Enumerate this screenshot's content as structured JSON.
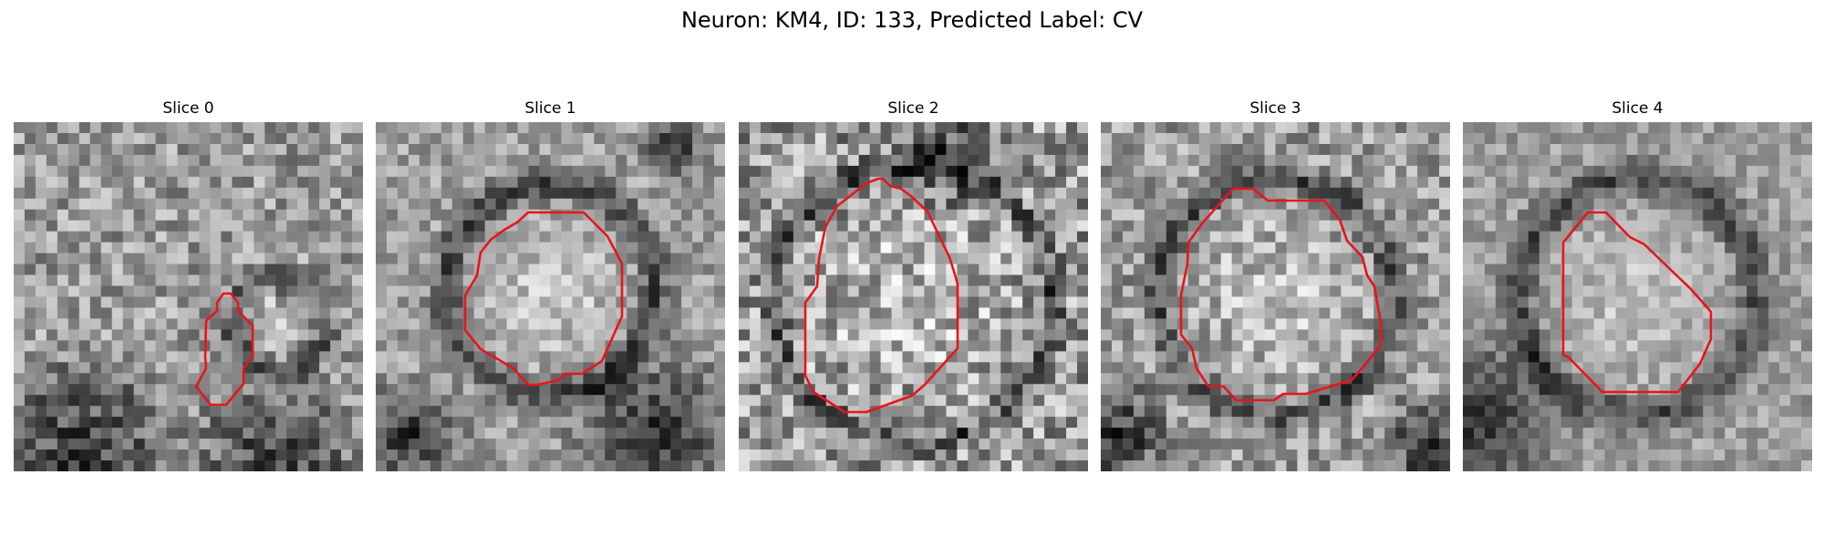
{
  "figure": {
    "title": "Neuron: KM4, ID: 133, Predicted Label: CV",
    "contour_color": "#e8141c",
    "background": "#ffffff"
  },
  "panels": [
    {
      "title": "Slice 0",
      "seed": 11,
      "contrast": 0.9,
      "noise": 0.45
    },
    {
      "title": "Slice 1",
      "seed": 23,
      "contrast": 1.0,
      "noise": 0.35
    },
    {
      "title": "Slice 2",
      "seed": 37,
      "contrast": 0.85,
      "noise": 0.6
    },
    {
      "title": "Slice 3",
      "seed": 41,
      "contrast": 0.9,
      "noise": 0.45
    },
    {
      "title": "Slice 4",
      "seed": 53,
      "contrast": 0.95,
      "noise": 0.3
    }
  ]
}
